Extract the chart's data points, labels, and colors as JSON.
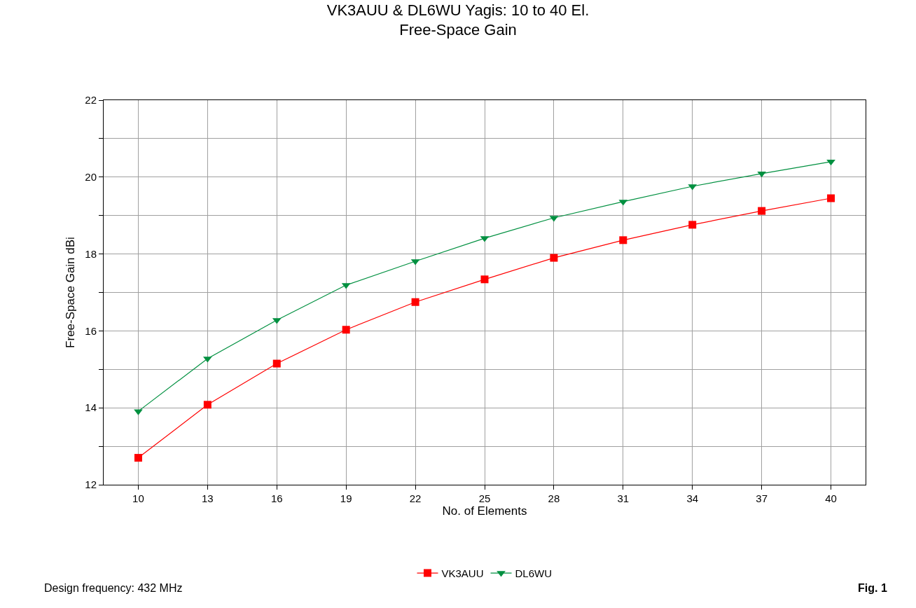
{
  "chart_data": {
    "type": "line",
    "title": "VK3AUU & DL6WU Yagis: 10 to 40 El.",
    "subtitle": "Free-Space Gain",
    "xlabel": "No. of Elements",
    "ylabel": "Free-Space Gain dBi",
    "x": [
      10,
      13,
      16,
      19,
      22,
      25,
      28,
      31,
      34,
      37,
      40
    ],
    "series": [
      {
        "name": "VK3AUU",
        "color": "#ff0000",
        "marker": "square",
        "values": [
          12.7,
          14.08,
          15.15,
          16.03,
          16.75,
          17.34,
          17.9,
          18.36,
          18.76,
          19.12,
          19.45
        ]
      },
      {
        "name": "DL6WU",
        "color": "#009040",
        "marker": "triangle",
        "values": [
          13.91,
          15.28,
          16.28,
          17.19,
          17.81,
          18.41,
          18.94,
          19.36,
          19.76,
          20.09,
          20.4
        ]
      }
    ],
    "xlim": [
      8.5,
      41.5
    ],
    "xticks": [
      10,
      13,
      16,
      19,
      22,
      25,
      28,
      31,
      34,
      37,
      40
    ],
    "ylim": [
      12,
      22
    ],
    "yticks": [
      12,
      {
        "value": 13,
        "label": null
      },
      14,
      {
        "value": 15,
        "label": null
      },
      16,
      {
        "value": 17,
        "label": null
      },
      18,
      {
        "value": 19,
        "label": null
      },
      20,
      {
        "value": 21,
        "label": null
      },
      22
    ],
    "grid": true,
    "legend": "bottom",
    "line_style": "solid",
    "annotations": [
      "Design frequency: 432 MHz",
      "Fig. 1"
    ]
  }
}
